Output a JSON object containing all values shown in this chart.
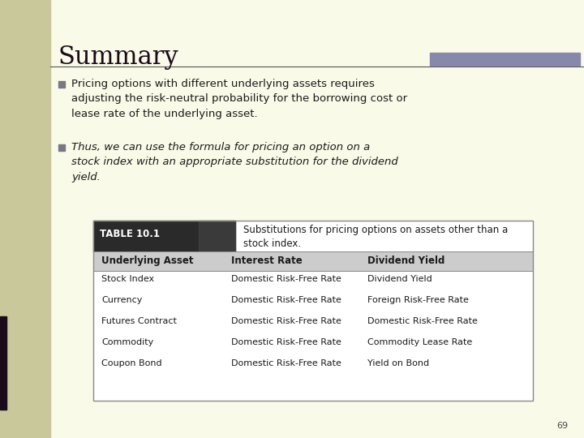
{
  "title": "Summary",
  "bg_color": "#fafae8",
  "left_panel_color": "#c8c89a",
  "left_bar_color": "#1a0a1a",
  "title_color": "#1a0a1a",
  "title_fontsize": 22,
  "accent_bar_color": "#8888aa",
  "bullet_color": "#777788",
  "bullet1": "Pricing options with different underlying assets requires\nadjusting the risk-neutral probability for the borrowing cost or\nlease rate of the underlying asset.",
  "bullet2": "Thus, we can use the formula for pricing an option on a\nstock index with an appropriate substitution for the dividend\nyield.",
  "table_title": "TABLE 10.1",
  "table_subtitle": "Substitutions for pricing options on assets other than a\nstock index.",
  "table_headers": [
    "Underlying Asset",
    "Interest Rate",
    "Dividend Yield"
  ],
  "table_rows": [
    [
      "Stock Index",
      "Domestic Risk-Free Rate",
      "Dividend Yield"
    ],
    [
      "Currency",
      "Domestic Risk-Free Rate",
      "Foreign Risk-Free Rate"
    ],
    [
      "Futures Contract",
      "Domestic Risk-Free Rate",
      "Domestic Risk-Free Rate"
    ],
    [
      "Commodity",
      "Domestic Risk-Free Rate",
      "Commodity Lease Rate"
    ],
    [
      "Coupon Bond",
      "Domestic Risk-Free Rate",
      "Yield on Bond"
    ]
  ],
  "page_number": "69",
  "text_color": "#1a1a1a",
  "table_bg": "#ffffff",
  "table_header_bg": "#cccccc",
  "table_title_bg": "#222222"
}
